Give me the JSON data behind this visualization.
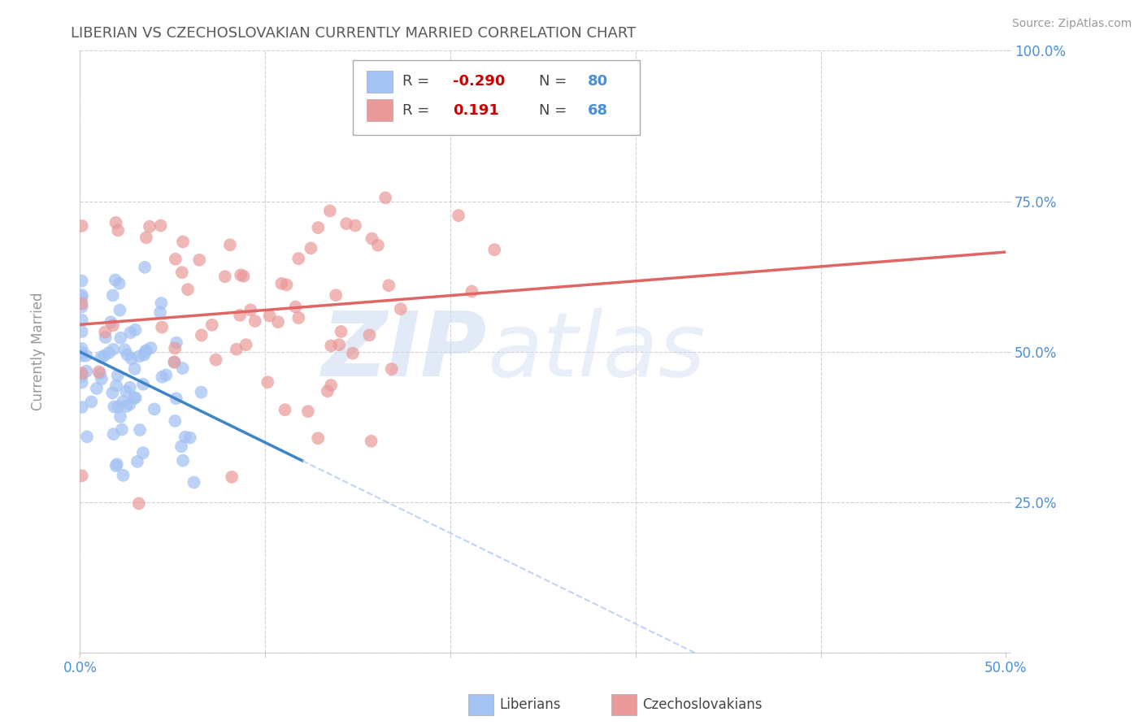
{
  "title": "LIBERIAN VS CZECHOSLOVAKIAN CURRENTLY MARRIED CORRELATION CHART",
  "source": "Source: ZipAtlas.com",
  "ylabel": "Currently Married",
  "xlim": [
    0.0,
    0.5
  ],
  "ylim": [
    0.0,
    1.0
  ],
  "xticks": [
    0.0,
    0.1,
    0.2,
    0.3,
    0.4,
    0.5
  ],
  "yticks": [
    0.0,
    0.25,
    0.5,
    0.75,
    1.0
  ],
  "xtick_labels": [
    "0.0%",
    "",
    "",
    "",
    "",
    "50.0%"
  ],
  "ytick_labels": [
    "",
    "25.0%",
    "50.0%",
    "75.0%",
    "100.0%"
  ],
  "legend_labels": [
    "Liberians",
    "Czechoslovakians"
  ],
  "liberian_R": -0.29,
  "liberian_N": 80,
  "czech_R": 0.191,
  "czech_N": 68,
  "blue_color": "#a4c2f4",
  "pink_color": "#ea9999",
  "blue_line_color": "#3d85c8",
  "pink_line_color": "#e06666",
  "blue_dashed_color": "#a4c2f4",
  "background_color": "#ffffff",
  "grid_color": "#cccccc",
  "title_color": "#595959",
  "axis_label_color": "#999999",
  "tick_color": "#4a90d9",
  "r_neg_color": "#cc0000",
  "r_pos_color": "#cc0000",
  "n_color": "#4a90d9",
  "legend_border_color": "#aaaaaa",
  "watermark_zip_color": "#c9d9f0",
  "watermark_atlas_color": "#c9d9f0"
}
